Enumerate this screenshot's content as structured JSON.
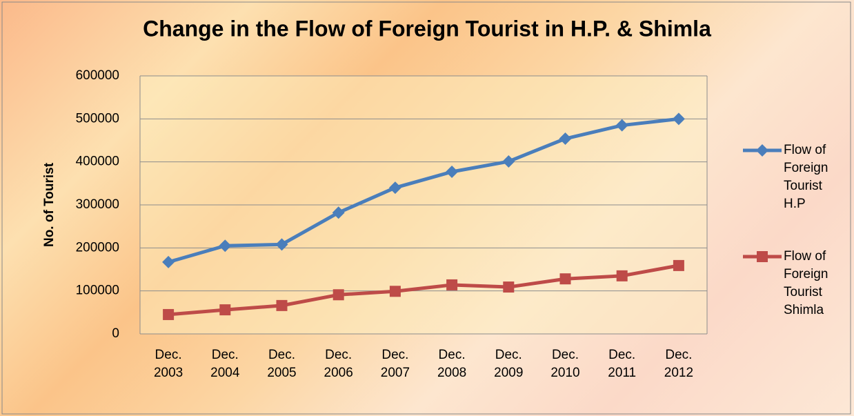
{
  "chart_data": {
    "type": "line",
    "title": "Change in the Flow of Foreign Tourist in H.P. & Shimla",
    "y_label": "No. of Tourist",
    "categories": [
      "Dec. 2003",
      "Dec. 2004",
      "Dec. 2005",
      "Dec. 2006",
      "Dec. 2007",
      "Dec. 2008",
      "Dec. 2009",
      "Dec. 2010",
      "Dec. 2011",
      "Dec. 2012"
    ],
    "series": [
      {
        "name": "Flow of Foreign Tourist H.P",
        "color": "#4a7ebb",
        "marker": "diamond",
        "values": [
          167000,
          205000,
          208000,
          282000,
          340000,
          377000,
          401000,
          454000,
          485000,
          500000
        ]
      },
      {
        "name": "Flow of Foreign Tourist Shimla",
        "color": "#be4b48",
        "marker": "square",
        "values": [
          45000,
          56000,
          66000,
          91000,
          99000,
          114000,
          109000,
          128000,
          135000,
          159000
        ]
      }
    ],
    "ylim": [
      0,
      600000
    ],
    "yticks": [
      0,
      100000,
      200000,
      300000,
      400000,
      500000,
      600000
    ],
    "grid": true,
    "legend": "right"
  }
}
